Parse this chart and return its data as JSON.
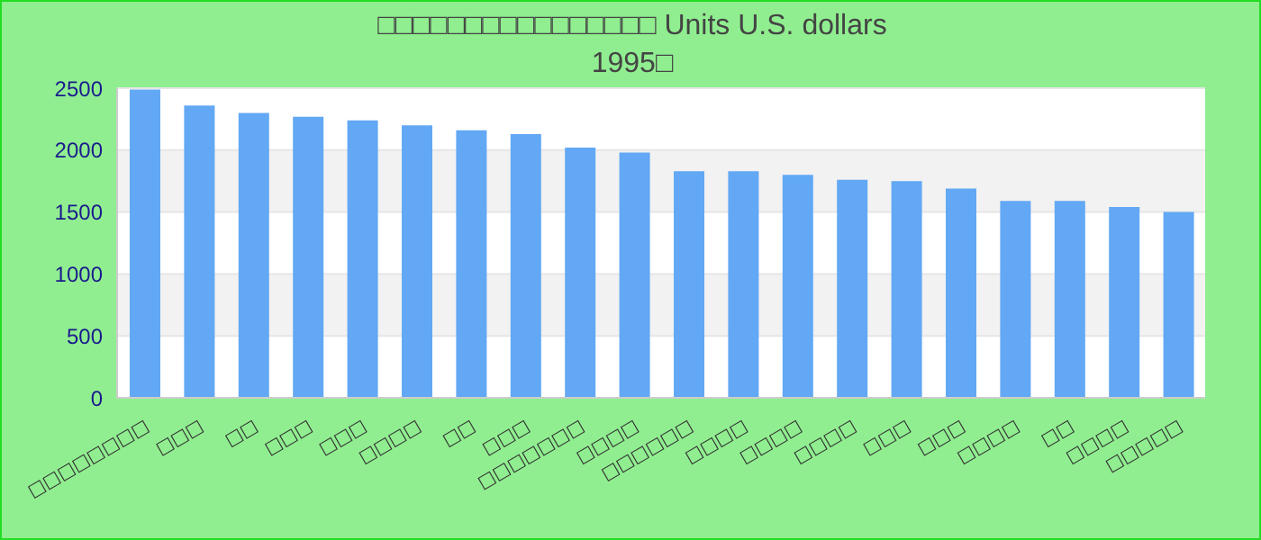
{
  "chart_data": {
    "type": "bar",
    "title": "□□□□□□□□□□□□□□□□ Units U.S. dollars",
    "subtitle": "1995□",
    "categories": [
      "□□□□□□□□",
      "□□□",
      "□□",
      "□□□",
      "□□□",
      "□□□□",
      "□□",
      "□□□",
      "□□□□□□□",
      "□□□□",
      "□□□□□□",
      "□□□□",
      "□□□□",
      "□□□□",
      "□□□",
      "□□□",
      "□□□□",
      "□□",
      "□□□□",
      "□□□□□"
    ],
    "values": [
      2490,
      2360,
      2300,
      2270,
      2240,
      2200,
      2160,
      2130,
      2020,
      1980,
      1830,
      1830,
      1800,
      1760,
      1750,
      1690,
      1590,
      1590,
      1540,
      1500
    ],
    "color": "#62a8f4",
    "ylim": [
      0,
      2500
    ],
    "yticks": [
      0,
      500,
      1000,
      1500,
      2000,
      2500
    ],
    "grid": "y"
  }
}
